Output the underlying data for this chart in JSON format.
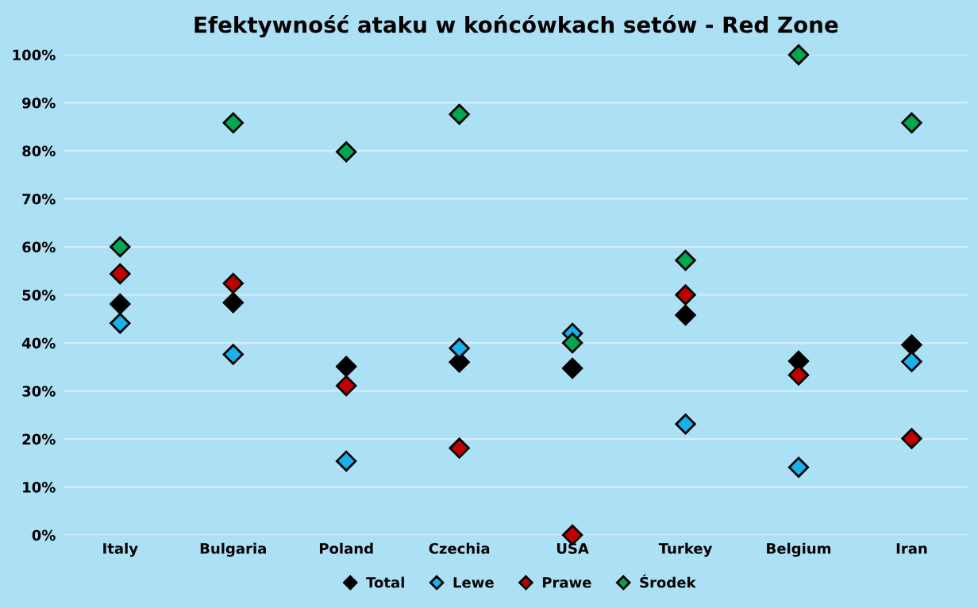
{
  "chart_data": {
    "type": "scatter",
    "title": "Efektywność ataku w końcówkach setów - Red Zone",
    "categories": [
      "Italy",
      "Bulgaria",
      "Poland",
      "Czechia",
      "USA",
      "Turkey",
      "Belgium",
      "Iran"
    ],
    "series": [
      {
        "name": "Total",
        "color": "#000000",
        "values": [
          48.1,
          48.4,
          35.1,
          36.0,
          34.7,
          45.8,
          36.2,
          39.6
        ]
      },
      {
        "name": "Lewe",
        "color": "#1ab0ea",
        "values": [
          44.1,
          37.6,
          15.4,
          38.9,
          42.0,
          23.1,
          14.1,
          36.1
        ]
      },
      {
        "name": "Prawe",
        "color": "#c00000",
        "values": [
          54.4,
          52.4,
          31.1,
          18.1,
          0,
          50.0,
          33.3,
          20.1
        ]
      },
      {
        "name": "Środek",
        "color": "#00a651",
        "values": [
          60,
          85.8,
          79.8,
          87.6,
          40,
          57.2,
          100,
          85.8
        ]
      }
    ],
    "ylim": [
      0,
      100
    ],
    "yticks": [
      {
        "value": 0,
        "label": "0%"
      },
      {
        "value": 10,
        "label": "10%"
      },
      {
        "value": 20,
        "label": "20%"
      },
      {
        "value": 30,
        "label": "30%"
      },
      {
        "value": 40,
        "label": "40%"
      },
      {
        "value": 50,
        "label": "50%"
      },
      {
        "value": 60,
        "label": "60%"
      },
      {
        "value": 70,
        "label": "70%"
      },
      {
        "value": 80,
        "label": "80%"
      },
      {
        "value": 90,
        "label": "90%"
      },
      {
        "value": 100,
        "label": "100%"
      }
    ],
    "grid": "y",
    "legend": "bottom",
    "marker": "diamond"
  }
}
